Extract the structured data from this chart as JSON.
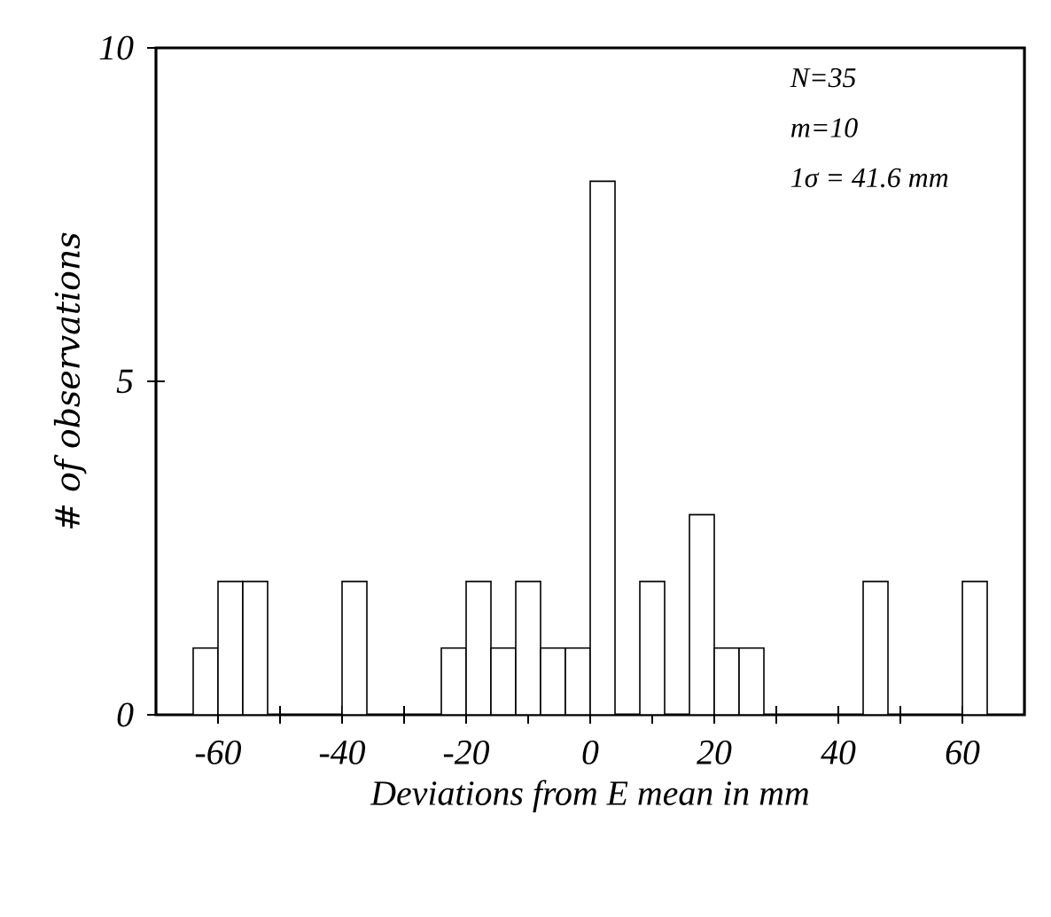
{
  "chart_data": {
    "type": "histogram",
    "xlabel": "Deviations from E mean in mm",
    "ylabel": "# of observations",
    "annotations": [
      "N=35",
      "m=10",
      "1σ = 41.6 mm"
    ],
    "bins": [
      -64,
      -60,
      -56,
      -52,
      -48,
      -44,
      -40,
      -36,
      -32,
      -28,
      -24,
      -20,
      -16,
      -12,
      -8,
      -4,
      0,
      4,
      8,
      12,
      16,
      20,
      24,
      28,
      32,
      36,
      40,
      44,
      48,
      52,
      56,
      60,
      64
    ],
    "values": [
      1,
      2,
      2,
      0,
      0,
      0,
      2,
      0,
      0,
      0,
      1,
      2,
      1,
      2,
      1,
      1,
      8,
      0,
      2,
      0,
      3,
      1,
      1,
      0,
      0,
      0,
      0,
      2,
      0,
      0,
      0,
      2
    ],
    "xlim": [
      -70,
      70
    ],
    "ylim": [
      0,
      10
    ],
    "xticks": [
      -60,
      {
        "value": -50,
        "label": null
      },
      -40,
      {
        "value": -30,
        "label": null
      },
      -20,
      {
        "value": -10,
        "label": null
      },
      0,
      {
        "value": 10,
        "label": null
      },
      20,
      {
        "value": 30,
        "label": null
      },
      40,
      {
        "value": 50,
        "label": null
      },
      60
    ],
    "yticks": [
      0,
      5,
      10
    ],
    "grid": false
  }
}
